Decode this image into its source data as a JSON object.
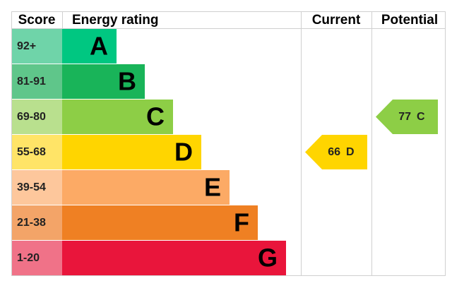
{
  "header": {
    "score": "Score",
    "energy_rating": "Energy rating",
    "current": "Current",
    "potential": "Potential"
  },
  "bands": [
    {
      "score": "92+",
      "letter": "A",
      "color": "#00c781",
      "score_color": "#6fd4a9"
    },
    {
      "score": "81-91",
      "letter": "B",
      "color": "#19b459",
      "score_color": "#5fc68a"
    },
    {
      "score": "69-80",
      "letter": "C",
      "color": "#8dce46",
      "score_color": "#b9e08e"
    },
    {
      "score": "55-68",
      "letter": "D",
      "color": "#ffd500",
      "score_color": "#ffe467"
    },
    {
      "score": "39-54",
      "letter": "E",
      "color": "#fcaa65",
      "score_color": "#fdc79c"
    },
    {
      "score": "21-38",
      "letter": "F",
      "color": "#ef8023",
      "score_color": "#f3a468"
    },
    {
      "score": "1-20",
      "letter": "G",
      "color": "#e9153b",
      "score_color": "#f07288"
    }
  ],
  "current": {
    "value": 66,
    "letter": "D"
  },
  "potential": {
    "value": 77,
    "letter": "C"
  }
}
